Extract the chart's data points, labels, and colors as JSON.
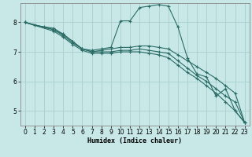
{
  "xlabel": "Humidex (Indice chaleur)",
  "background_color": "#c8e8e8",
  "grid_color": "#a8cece",
  "line_color": "#2a6b65",
  "xlim": [
    -0.5,
    23.5
  ],
  "ylim": [
    4.5,
    8.65
  ],
  "yticks": [
    5,
    6,
    7,
    8
  ],
  "xticks": [
    0,
    1,
    2,
    3,
    4,
    5,
    6,
    7,
    8,
    9,
    10,
    11,
    12,
    13,
    14,
    15,
    16,
    17,
    18,
    19,
    20,
    21,
    22,
    23
  ],
  "series": [
    {
      "x": [
        0,
        1,
        2,
        3,
        4,
        5,
        6,
        7,
        8,
        9,
        10,
        11,
        12,
        13,
        14,
        15,
        16,
        17,
        18,
        19,
        20,
        21,
        22,
        23
      ],
      "y": [
        8.0,
        7.9,
        7.85,
        7.8,
        7.6,
        7.35,
        7.1,
        7.05,
        7.1,
        7.15,
        8.05,
        8.05,
        8.5,
        8.55,
        8.6,
        8.55,
        7.85,
        6.8,
        6.25,
        6.15,
        5.5,
        5.75,
        5.0,
        4.6
      ]
    },
    {
      "x": [
        0,
        3,
        4,
        5,
        6,
        7,
        8,
        9,
        10,
        11,
        12,
        13,
        14,
        15,
        16,
        17,
        18,
        19,
        20,
        21,
        22,
        23
      ],
      "y": [
        8.0,
        7.75,
        7.55,
        7.3,
        7.1,
        7.0,
        7.0,
        7.0,
        7.05,
        7.05,
        7.1,
        7.05,
        7.0,
        6.95,
        6.7,
        6.45,
        6.2,
        6.0,
        5.75,
        5.5,
        5.3,
        4.6
      ]
    },
    {
      "x": [
        0,
        3,
        4,
        5,
        6,
        7,
        8,
        9,
        10,
        11,
        12,
        13,
        14,
        15,
        16,
        17,
        18,
        19,
        20,
        21,
        22,
        23
      ],
      "y": [
        8.0,
        7.75,
        7.6,
        7.35,
        7.1,
        7.0,
        7.05,
        7.1,
        7.15,
        7.15,
        7.2,
        7.2,
        7.15,
        7.1,
        6.9,
        6.7,
        6.5,
        6.3,
        6.1,
        5.85,
        5.6,
        4.6
      ]
    },
    {
      "x": [
        0,
        3,
        4,
        5,
        6,
        7,
        8,
        9,
        10,
        11,
        12,
        13,
        14,
        15,
        16,
        17,
        18,
        19,
        20,
        21,
        22,
        23
      ],
      "y": [
        8.0,
        7.7,
        7.5,
        7.25,
        7.05,
        6.95,
        6.95,
        6.95,
        7.0,
        7.0,
        7.0,
        6.95,
        6.9,
        6.8,
        6.55,
        6.3,
        6.1,
        5.85,
        5.6,
        5.3,
        5.0,
        4.6
      ]
    }
  ]
}
